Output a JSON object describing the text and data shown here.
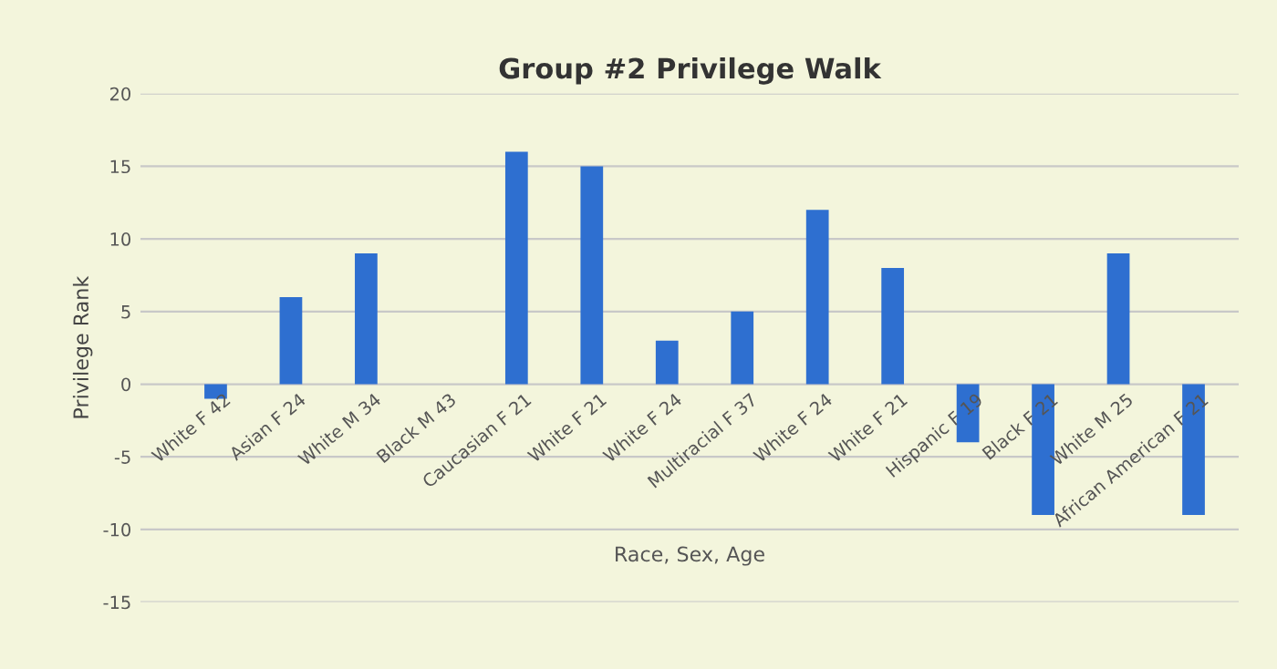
{
  "chart_data": {
    "type": "bar",
    "title": "Group #2 Privilege Walk",
    "xlabel": "Race, Sex, Age",
    "ylabel": "Privilege Rank",
    "categories": [
      "White F 42",
      "Asian F 24",
      "White M 34",
      "Black M 43",
      "Caucasian F 21",
      "White F 21",
      "White F 24",
      "Multiracial F 37",
      "White F 24",
      "White F 21",
      "Hispanic F 19",
      "Black F 21",
      "White M 25",
      "African American F 21"
    ],
    "values": [
      -1,
      6,
      9,
      0,
      16,
      15,
      3,
      5,
      12,
      8,
      -4,
      -9,
      9,
      -9
    ],
    "color": "#2e6fd0",
    "ylim": [
      -15,
      20
    ],
    "yticks": [
      -15,
      -10,
      -5,
      0,
      5,
      10,
      15,
      20
    ],
    "grid": "y"
  }
}
